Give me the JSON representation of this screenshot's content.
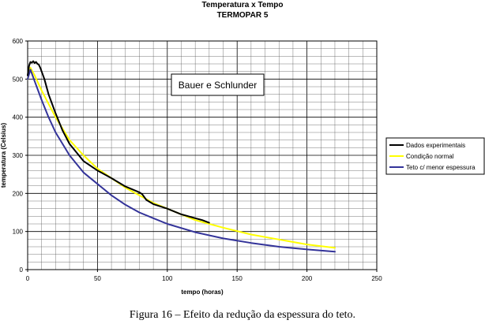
{
  "chart_data": {
    "type": "line",
    "title": "Temperatura x Tempo",
    "subtitle": "TERMOPAR 5",
    "xlabel": "tempo (horas)",
    "ylabel": "temperatura (Celsius)",
    "xlim": [
      0,
      250
    ],
    "ylim": [
      0,
      600
    ],
    "xticks": [
      0,
      50,
      100,
      150,
      200,
      250
    ],
    "yticks": [
      0,
      100,
      200,
      300,
      400,
      500,
      600
    ],
    "grid": true,
    "legend_position": "right",
    "annotation": "Bauer e Schlunder",
    "series": [
      {
        "name": "Dados experimentais",
        "color": "#000000",
        "x": [
          0,
          1,
          2,
          3,
          4,
          5,
          6,
          7,
          8,
          9,
          10,
          12,
          15,
          20,
          25,
          30,
          40,
          50,
          60,
          70,
          80,
          82,
          85,
          90,
          100,
          110,
          120,
          125,
          130
        ],
        "y": [
          510,
          535,
          545,
          543,
          547,
          542,
          545,
          540,
          538,
          530,
          520,
          500,
          460,
          410,
          365,
          330,
          285,
          260,
          240,
          218,
          203,
          198,
          183,
          172,
          160,
          145,
          135,
          130,
          123
        ]
      },
      {
        "name": "Condição normal",
        "color": "#ffff00",
        "x": [
          0,
          2,
          5,
          10,
          15,
          20,
          30,
          40,
          50,
          60,
          70,
          80,
          90,
          100,
          120,
          140,
          160,
          180,
          200,
          220
        ],
        "y": [
          500,
          530,
          510,
          470,
          435,
          400,
          340,
          300,
          265,
          240,
          215,
          195,
          175,
          160,
          130,
          110,
          92,
          79,
          66,
          57
        ]
      },
      {
        "name": "Teto c/ menor espessura",
        "color": "#333399",
        "x": [
          0,
          2,
          5,
          10,
          15,
          20,
          30,
          40,
          50,
          60,
          70,
          80,
          90,
          100,
          120,
          140,
          160,
          180,
          200,
          220
        ],
        "y": [
          500,
          525,
          495,
          445,
          400,
          360,
          300,
          255,
          225,
          195,
          170,
          150,
          135,
          120,
          98,
          82,
          70,
          60,
          53,
          47
        ]
      }
    ]
  },
  "caption": "Figura 16 – Efeito da redução da espessura do teto."
}
